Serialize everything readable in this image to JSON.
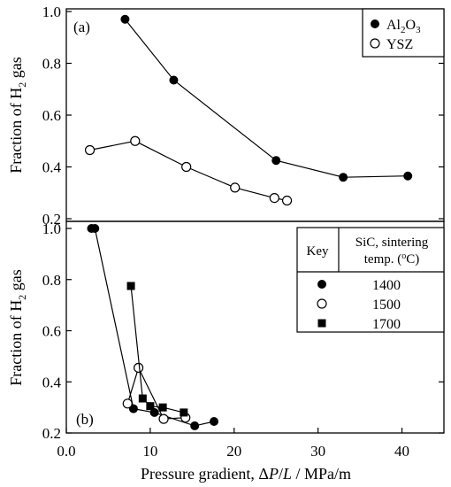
{
  "chart_data": [
    {
      "type": "line",
      "panel_label": "(a)",
      "ylabel_parts": [
        "Fraction of H",
        "2",
        " gas"
      ],
      "ylim": [
        0.2,
        1.0
      ],
      "yticks": [
        0.2,
        0.4,
        0.6,
        0.8,
        1.0
      ],
      "ytick_labels": [
        "0.2",
        "0.4",
        "0.6",
        "0.8",
        "1.0"
      ],
      "xlim": [
        0,
        45
      ],
      "grid": false,
      "legend_position": "top-right",
      "series": [
        {
          "name_parts": [
            "Al",
            "2",
            "O",
            "3"
          ],
          "marker": "filled-circle",
          "x": [
            7.0,
            12.8,
            25.0,
            33.0,
            40.7
          ],
          "y": [
            0.97,
            0.735,
            0.425,
            0.36,
            0.365
          ]
        },
        {
          "name": "YSZ",
          "marker": "open-circle",
          "x": [
            2.8,
            8.2,
            14.3,
            20.1,
            24.8,
            26.3
          ],
          "y": [
            0.465,
            0.5,
            0.4,
            0.32,
            0.28,
            0.27
          ]
        }
      ]
    },
    {
      "type": "line",
      "panel_label": "(b)",
      "ylabel_parts": [
        "Fraction of H",
        "2",
        " gas"
      ],
      "ylim": [
        0.2,
        1.0
      ],
      "yticks": [
        0.2,
        0.4,
        0.6,
        0.8,
        1.0
      ],
      "ytick_labels": [
        "0.2",
        "0.4",
        "0.6",
        "0.8",
        "1.0"
      ],
      "xlabel_parts": [
        "Pressure gradient, Δ",
        "P",
        "/",
        "L",
        " / MPa/m"
      ],
      "xlim": [
        0,
        45
      ],
      "xticks": [
        0,
        10,
        20,
        30,
        40
      ],
      "xtick_labels": [
        "0.0",
        "10",
        "20",
        "30",
        "40"
      ],
      "grid": false,
      "legend_position": "top-right",
      "legend_header": {
        "key_label": "Key",
        "col_title_line1": "SiC, sintering",
        "col_title_line2_parts": [
          "temp. (",
          "o",
          "C)"
        ]
      },
      "series": [
        {
          "name": "1400",
          "marker": "filled-circle",
          "x": [
            3.0,
            3.4,
            8.0,
            10.5,
            15.3,
            17.6
          ],
          "y": [
            1.0,
            1.0,
            0.295,
            0.28,
            0.228,
            0.245
          ]
        },
        {
          "name": "1500",
          "marker": "open-circle",
          "x": [
            7.3,
            8.6,
            11.6,
            14.2
          ],
          "y": [
            0.315,
            0.455,
            0.255,
            0.26
          ]
        },
        {
          "name": "1700",
          "marker": "filled-square",
          "x": [
            7.7,
            9.1,
            10.0,
            11.5,
            14.0
          ],
          "y": [
            0.775,
            0.335,
            0.305,
            0.3,
            0.28
          ]
        }
      ]
    }
  ]
}
